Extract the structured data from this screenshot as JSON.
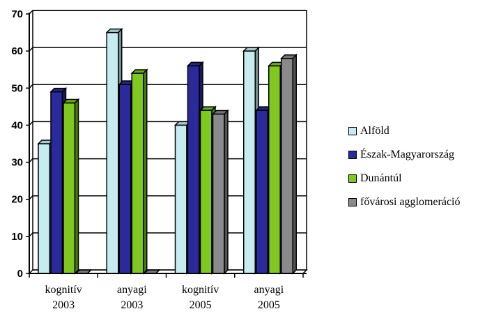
{
  "chart_data": {
    "type": "bar",
    "style": "3d-clustered-column",
    "categories": [
      [
        "kognitív",
        "2003"
      ],
      [
        "anyagi",
        "2003"
      ],
      [
        "kognitív",
        "2005"
      ],
      [
        "anyagi",
        "2005"
      ]
    ],
    "series": [
      {
        "name": "Alföld",
        "color": "#c6ecf0",
        "values": [
          35,
          65,
          40,
          60
        ]
      },
      {
        "name": "Észak-Magyarország",
        "color": "#2a2a9c",
        "values": [
          49,
          51,
          56,
          44
        ]
      },
      {
        "name": "Dunántúl",
        "color": "#7fc81f",
        "values": [
          46,
          54,
          44,
          56
        ]
      },
      {
        "name": "fővárosi agglomeráció",
        "color": "#8a8a8a",
        "values": [
          0,
          0,
          43,
          58
        ]
      }
    ],
    "ylim": [
      0,
      70
    ],
    "yticks": [
      0,
      10,
      20,
      30,
      40,
      50,
      60,
      70
    ],
    "grid": true,
    "legend_position": "right",
    "title": "",
    "xlabel": "",
    "ylabel": ""
  }
}
